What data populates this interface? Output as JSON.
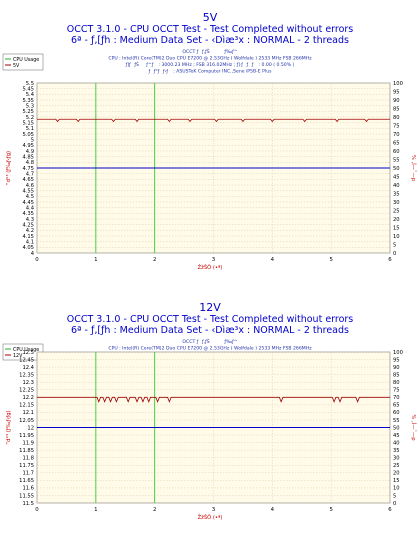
{
  "charts": [
    {
      "id": "top",
      "panel_title": "5V",
      "title_line1": "OCCT 3.1.0 - CPU OCCT Test - Test Completed without errors",
      "title_line2": "6ª - ƒ‚[ƒh : Medium Data Set - ‹Dìæ³x : NORMAL - 2 threads",
      "info_lines": [
        "OCCT ƒƒ‚ƒŠƒ‰ƒ^",
        "CPU : Intel(R) Core(TM)2 Duo CPU E7200 @ 2.53GHz ( Wolfdale ) 2533 MHz FSB 266MHz",
        "ƒ]ƒƒŠƒ^ƒ : 3000.23 MHz ; FSB 316.02MHz ; ƒ}ƒƒƒ : 0.00 ( 0.50% )",
        "ƒƒ°ƒƒ‹ƒ : ASUSTeK Computer INC.,Sene iP5B-E Plus"
      ],
      "legend": [
        "CPU Usage",
        "5V"
      ],
      "y_left_label": "“d°³ (ƒ‰ƒ‹ƒg)",
      "y_right_label": "% ‚Ì—˜—p",
      "x_label": "ŽžŠÔ (•ª)"
    },
    {
      "id": "bottom",
      "panel_title": "12V",
      "title_line1": "OCCT 3.1.0 - CPU OCCT Test - Test Completed without errors",
      "title_line2": "6ª - ƒ‚[ƒh : Medium Data Set - ‹Dìæ³x : NORMAL - 2 threads",
      "info_lines": [
        "OCCT ƒƒ‚ƒŠƒ‰ƒ^",
        "CPU : Intel(R) Core(TM)2 Duo CPU E7200 @ 2.53GHz ( Wolfdale ) 2533 MHz FSB 266MHz",
        "ƒ]ƒƒŠƒ^ƒ : 3000.23 MHz ; FSB 316.02MHz ; ƒ}ƒƒƒ : 0.00 ( 0.43% )",
        "ƒƒ°ƒƒ‹ƒ : ASUSTeK Computer INC.,Sene iP5B-E Plus"
      ],
      "legend": [
        "CPU Usage",
        "12V"
      ],
      "y_left_label": "“d°³ (ƒ‰ƒ‹ƒg)",
      "y_right_label": "% ‚Ì—˜—p",
      "x_label": "ŽžŠÔ (•ª)"
    }
  ],
  "chart_data": [
    {
      "type": "line",
      "title": "5V",
      "xlim": [
        0,
        6
      ],
      "x_ticks": [
        "0",
        "1",
        "2",
        "3",
        "4",
        "5",
        "6"
      ],
      "ylim_left": [
        4.0,
        5.5
      ],
      "y_ticks_left": [
        "4",
        "4.05",
        "4.1",
        "4.15",
        "4.2",
        "4.25",
        "4.3",
        "4.35",
        "4.4",
        "4.45",
        "4.5",
        "4.55",
        "4.6",
        "4.65",
        "4.7",
        "4.75",
        "4.8",
        "4.85",
        "4.9",
        "4.95",
        "5",
        "5.05",
        "5.1",
        "5.15",
        "5.2",
        "5.25",
        "5.3",
        "5.35",
        "5.4",
        "5.45",
        "5.5"
      ],
      "ylim_right": [
        0,
        100
      ],
      "y_ticks_right": [
        "0",
        "5",
        "10",
        "15",
        "20",
        "25",
        "30",
        "35",
        "40",
        "45",
        "50",
        "55",
        "60",
        "65",
        "70",
        "75",
        "80",
        "85",
        "90",
        "95",
        "100"
      ],
      "grid": true,
      "markers_x": [
        1,
        2
      ],
      "series": [
        {
          "name": "5V",
          "axis": "left",
          "color": "#a00000",
          "base": 5.18,
          "dips": [
            {
              "x": 0.35,
              "d": 0.02
            },
            {
              "x": 0.7,
              "d": 0.02
            },
            {
              "x": 1.3,
              "d": 0.02
            },
            {
              "x": 1.7,
              "d": 0.02
            },
            {
              "x": 2.25,
              "d": 0.02
            },
            {
              "x": 2.6,
              "d": 0.02
            },
            {
              "x": 3.05,
              "d": 0.02
            },
            {
              "x": 3.5,
              "d": 0.02
            },
            {
              "x": 4.0,
              "d": 0.02
            },
            {
              "x": 4.55,
              "d": 0.02
            },
            {
              "x": 5.1,
              "d": 0.02
            },
            {
              "x": 5.6,
              "d": 0.02
            }
          ]
        },
        {
          "name": "CPU Usage",
          "axis": "right",
          "color": "#0000cc",
          "values_x": [
            0,
            6
          ],
          "values_y": [
            50,
            50
          ]
        }
      ]
    },
    {
      "type": "line",
      "title": "12V",
      "xlim": [
        0,
        6
      ],
      "x_ticks": [
        "0",
        "1",
        "2",
        "3",
        "4",
        "5",
        "6"
      ],
      "ylim_left": [
        11.5,
        12.5
      ],
      "y_ticks_left": [
        "11.5",
        "11.55",
        "11.6",
        "11.65",
        "11.7",
        "11.75",
        "11.8",
        "11.85",
        "11.9",
        "11.95",
        "12",
        "12.05",
        "12.1",
        "12.15",
        "12.2",
        "12.25",
        "12.3",
        "12.35",
        "12.4",
        "12.45",
        "12.5"
      ],
      "ylim_right": [
        0,
        100
      ],
      "y_ticks_right": [
        "0",
        "5",
        "10",
        "15",
        "20",
        "25",
        "30",
        "35",
        "40",
        "45",
        "50",
        "55",
        "60",
        "65",
        "70",
        "75",
        "80",
        "85",
        "90",
        "95",
        "100"
      ],
      "grid": true,
      "markers_x": [
        1,
        2
      ],
      "series": [
        {
          "name": "12V",
          "axis": "left",
          "color": "#a00000",
          "base": 12.2,
          "dips": [
            {
              "x": 1.05,
              "d": 0.03
            },
            {
              "x": 1.15,
              "d": 0.03
            },
            {
              "x": 1.25,
              "d": 0.03
            },
            {
              "x": 1.35,
              "d": 0.03
            },
            {
              "x": 1.55,
              "d": 0.03
            },
            {
              "x": 1.7,
              "d": 0.03
            },
            {
              "x": 1.8,
              "d": 0.03
            },
            {
              "x": 1.9,
              "d": 0.03
            },
            {
              "x": 2.05,
              "d": 0.03
            },
            {
              "x": 2.25,
              "d": 0.03
            },
            {
              "x": 4.15,
              "d": 0.03
            },
            {
              "x": 5.05,
              "d": 0.03
            },
            {
              "x": 5.15,
              "d": 0.03
            },
            {
              "x": 5.45,
              "d": 0.03
            }
          ]
        },
        {
          "name": "CPU Usage",
          "axis": "right",
          "color": "#0000cc",
          "values_x": [
            0,
            6
          ],
          "values_y": [
            50,
            50
          ]
        }
      ]
    }
  ]
}
